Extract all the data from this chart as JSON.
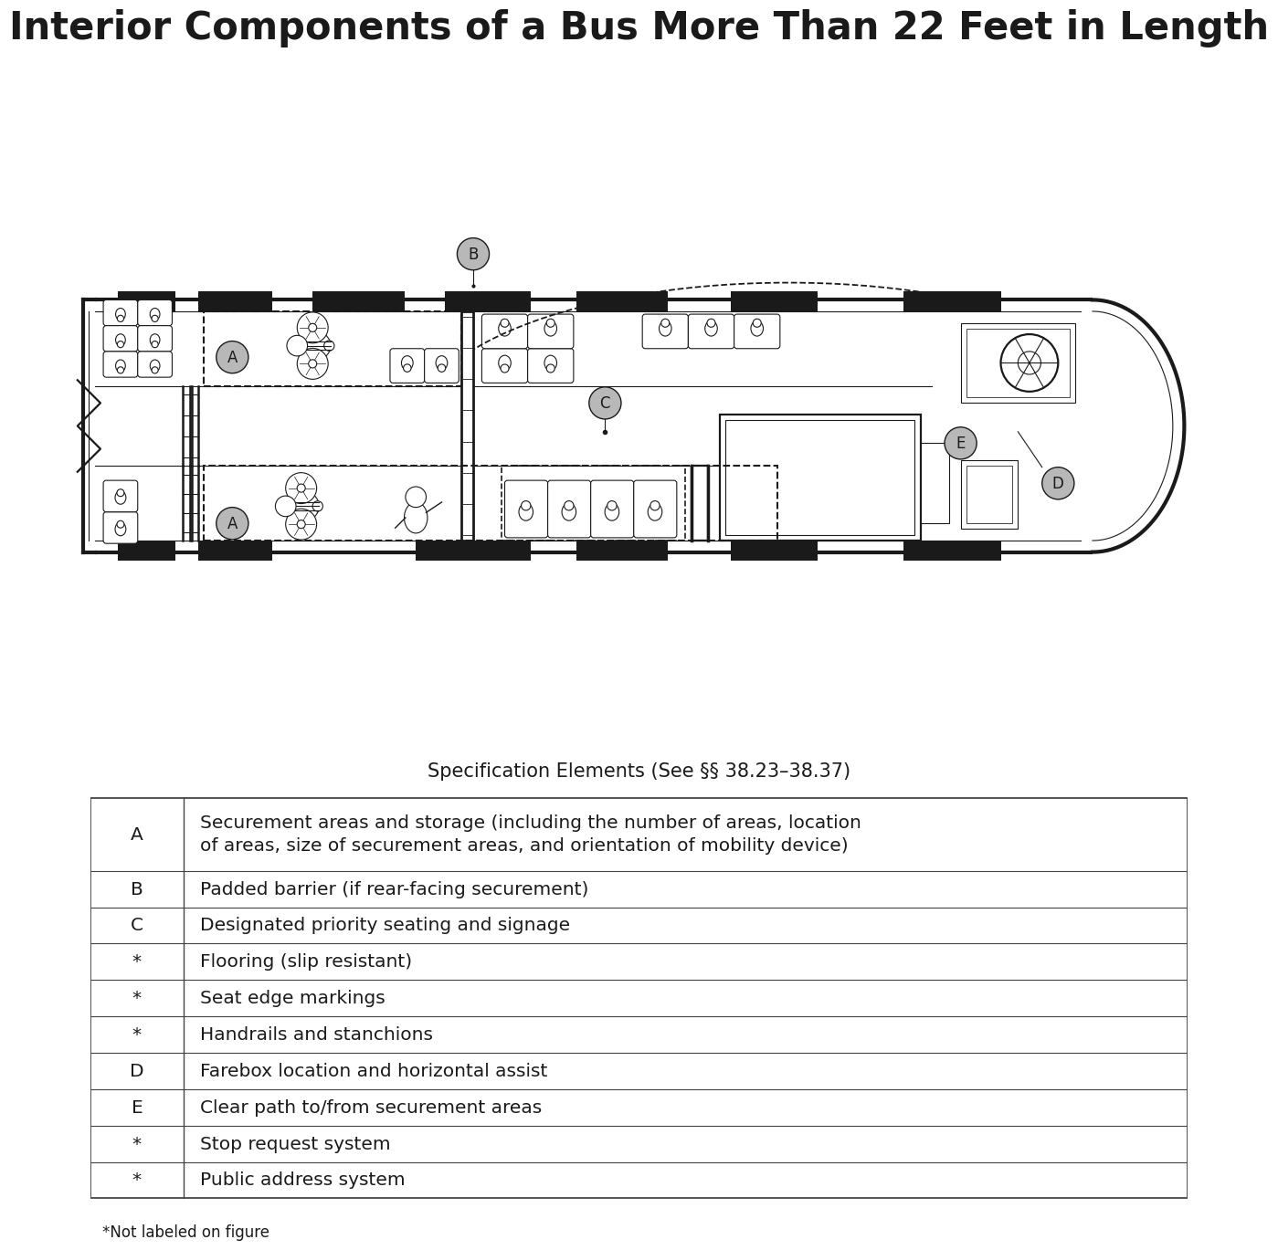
{
  "title": "Interior Components of a Bus More Than 22 Feet in Length",
  "title_fontsize": 30,
  "subtitle": "Specification Elements (See §§ 38.23–38.37)",
  "subtitle_fontsize": 15,
  "table_rows": [
    [
      "A",
      "Securement areas and storage (including the number of areas, location\nof areas, size of securement areas, and orientation of mobility device)"
    ],
    [
      "B",
      "Padded barrier (if rear-facing securement)"
    ],
    [
      "C",
      "Designated priority seating and signage"
    ],
    [
      "*",
      "Flooring (slip resistant)"
    ],
    [
      "*",
      "Seat edge markings"
    ],
    [
      "*",
      "Handrails and stanchions"
    ],
    [
      "D",
      "Farebox location and horizontal assist"
    ],
    [
      "E",
      "Clear path to/from securement areas"
    ],
    [
      "*",
      "Stop request system"
    ],
    [
      "*",
      "Public address system"
    ]
  ],
  "footnote": "*Not labeled on figure",
  "bg_color": "#ffffff",
  "line_color": "#1a1a1a",
  "label_bg_color": "#b8b8b8",
  "table_border_color": "#444444"
}
